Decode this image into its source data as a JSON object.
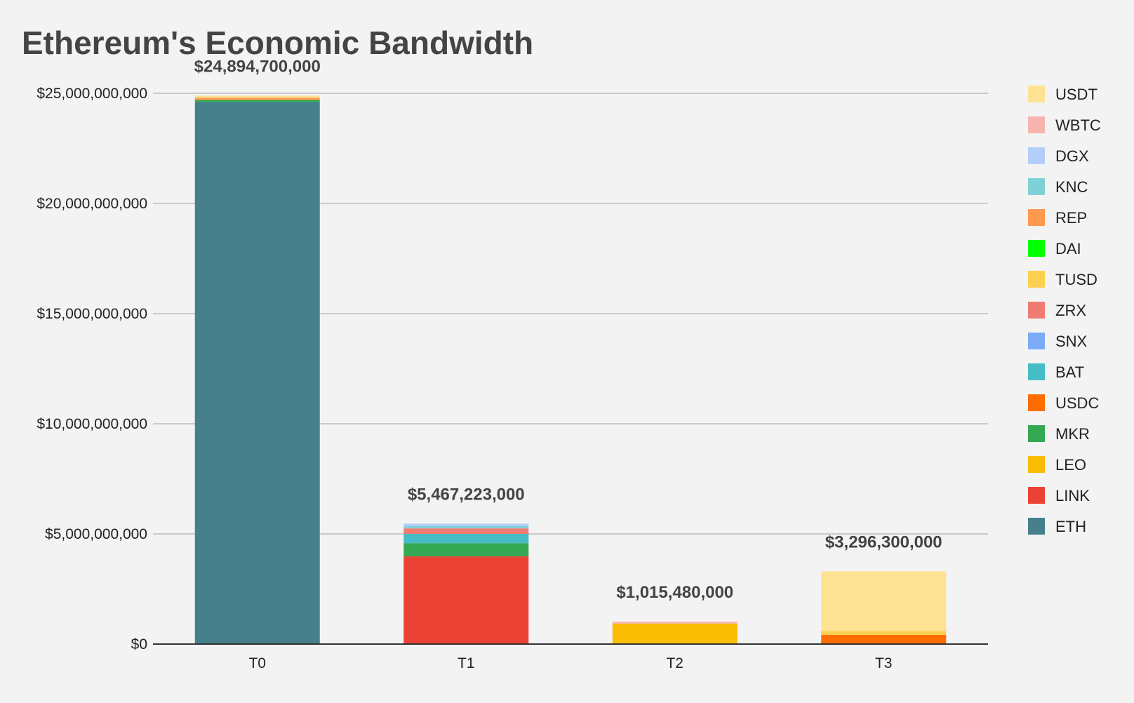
{
  "chart_data": {
    "type": "bar",
    "stacked": true,
    "title": "Ethereum's Economic Bandwidth",
    "xlabel": "",
    "ylabel": "",
    "ylim": [
      0,
      25000000000
    ],
    "y_ticks": [
      0,
      5000000000,
      10000000000,
      15000000000,
      20000000000,
      25000000000
    ],
    "y_tick_labels": [
      "$0",
      "$5,000,000,000",
      "$10,000,000,000",
      "$15,000,000,000",
      "$20,000,000,000",
      "$25,000,000,000"
    ],
    "grid": true,
    "legend_position": "right",
    "categories": [
      "T0",
      "T1",
      "T2",
      "T3"
    ],
    "totals": [
      "$24,894,700,000",
      "$5,467,223,000",
      "$1,015,480,000",
      "$3,296,300,000"
    ],
    "series": [
      {
        "name": "ETH",
        "color": "#46808c",
        "values": [
          24600000000,
          0,
          0,
          0
        ]
      },
      {
        "name": "LINK",
        "color": "#ea4335",
        "values": [
          0,
          3980000000,
          0,
          0
        ]
      },
      {
        "name": "LEO",
        "color": "#fbbc04",
        "values": [
          0,
          0,
          930000000,
          0
        ]
      },
      {
        "name": "MKR",
        "color": "#34a853",
        "values": [
          100000000,
          600000000,
          0,
          0
        ]
      },
      {
        "name": "USDC",
        "color": "#ff6d01",
        "values": [
          0,
          0,
          0,
          420000000
        ]
      },
      {
        "name": "BAT",
        "color": "#46bdc6",
        "values": [
          0,
          420000000,
          0,
          0
        ]
      },
      {
        "name": "SNX",
        "color": "#7baaf7",
        "values": [
          0,
          0,
          0,
          0
        ]
      },
      {
        "name": "ZRX",
        "color": "#f07b72",
        "values": [
          0,
          250000000,
          0,
          0
        ]
      },
      {
        "name": "TUSD",
        "color": "#fcd04f",
        "values": [
          0,
          0,
          0,
          180000000
        ]
      },
      {
        "name": "DAI",
        "color": "#00ff00",
        "values": [
          0,
          0,
          0,
          0
        ]
      },
      {
        "name": "REP",
        "color": "#ff994d",
        "values": [
          100000000,
          0,
          0,
          0
        ]
      },
      {
        "name": "KNC",
        "color": "#7ed1d7",
        "values": [
          0,
          100000000,
          0,
          0
        ]
      },
      {
        "name": "DGX",
        "color": "#b3cefb",
        "values": [
          0,
          117000000,
          0,
          0
        ]
      },
      {
        "name": "WBTC",
        "color": "#f7b4ae",
        "values": [
          0,
          0,
          85000000,
          0
        ]
      },
      {
        "name": "USDT",
        "color": "#fde293",
        "values": [
          94700000,
          0,
          0,
          2700000000
        ]
      }
    ],
    "legend_order": [
      "USDT",
      "WBTC",
      "DGX",
      "KNC",
      "REP",
      "DAI",
      "TUSD",
      "ZRX",
      "SNX",
      "BAT",
      "USDC",
      "MKR",
      "LEO",
      "LINK",
      "ETH"
    ]
  }
}
